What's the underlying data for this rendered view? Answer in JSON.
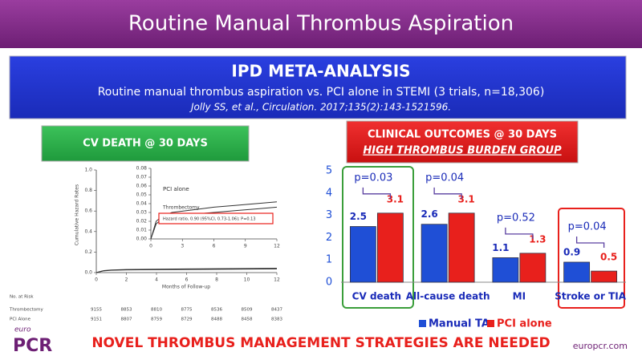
{
  "header": {
    "title": "Routine Manual Thrombus Aspiration"
  },
  "banner": {
    "title": "IPD META-ANALYSIS",
    "subtitle": "Routine manual thrombus aspiration vs. PCI alone in STEMI (3 trials, n=18,306)",
    "citation": "Jolly SS, et al., Circulation. 2017;135(2):143-1521596."
  },
  "footer": {
    "message": "NOVEL THROMBUS MANAGEMENT STRATEGIES ARE NEEDED",
    "logo_small": "euro",
    "logo": "PCR",
    "url": "europcr.com"
  },
  "chart_data": [
    {
      "type": "line",
      "title": "CV DEATH @ 30 DAYS",
      "xlabel": "Months of Follow-up",
      "ylabel": "Cumulative Hazard Rates",
      "x": [
        0,
        0.5,
        1,
        2,
        4,
        6,
        8,
        10,
        12
      ],
      "series": [
        {
          "name": "PCI alone",
          "color": "#333333",
          "values": [
            0,
            0.02,
            0.025,
            0.03,
            0.033,
            0.036,
            0.038,
            0.04,
            0.042
          ]
        },
        {
          "name": "Thrombectomy",
          "color": "#333333",
          "values": [
            0,
            0.017,
            0.022,
            0.026,
            0.028,
            0.03,
            0.032,
            0.034,
            0.036
          ]
        }
      ],
      "xlim": [
        0,
        12
      ],
      "xticks": [
        0,
        2,
        4,
        6,
        8,
        10,
        12
      ],
      "ylim": [
        0,
        1
      ],
      "yticks": [
        {
          "value": 0,
          "label": "0.0"
        },
        {
          "value": 0.2,
          "label": "0.2"
        },
        {
          "value": 0.4,
          "label": "0.4"
        },
        {
          "value": 0.6,
          "label": "0.6"
        },
        {
          "value": 0.8,
          "label": "0.8"
        },
        {
          "value": 1,
          "label": "1.0"
        }
      ],
      "inset": {
        "xlim": [
          0,
          12
        ],
        "xticks": [
          0,
          3,
          6,
          9,
          12
        ],
        "ylim": [
          0,
          0.08
        ],
        "yticks": [
          {
            "value": 0,
            "label": "0.00"
          },
          {
            "value": 0.01,
            "label": "0.01"
          },
          {
            "value": 0.02,
            "label": "0.02"
          },
          {
            "value": 0.03,
            "label": "0.03"
          },
          {
            "value": 0.04,
            "label": "0.04"
          },
          {
            "value": 0.05,
            "label": "0.05"
          },
          {
            "value": 0.06,
            "label": "0.06"
          },
          {
            "value": 0.07,
            "label": "0.07"
          },
          {
            "value": 0.08,
            "label": "0.08"
          }
        ],
        "annotation": "Hazard ratio, 0.90 (95%CI, 0.73-1.06); P=0.13"
      },
      "risk_table": {
        "title": "No. at Risk",
        "rows": [
          {
            "name": "Thrombectomy",
            "values": [
              9155,
              8853,
              8810,
              8775,
              8536,
              8509,
              8437
            ]
          },
          {
            "name": "PCI Alone",
            "values": [
              9151,
              8807,
              8759,
              8729,
              8488,
              8458,
              8383
            ]
          }
        ]
      }
    },
    {
      "type": "bar",
      "title": "CLINICAL OUTCOMES @ 30 DAYS",
      "subtitle": "HIGH THROMBUS BURDEN GROUP",
      "categories": [
        "CV death",
        "All-cause death",
        "MI",
        "Stroke or TIA"
      ],
      "series": [
        {
          "name": "Manual TA",
          "color": "#1f4fd6",
          "values": [
            2.5,
            2.6,
            1.1,
            0.9
          ]
        },
        {
          "name": "PCI alone",
          "color": "#e8201c",
          "values": [
            3.1,
            3.1,
            1.3,
            0.5
          ]
        }
      ],
      "annotations": [
        "p=0.03",
        "p=0.04",
        "p=0.52",
        "p=0.04"
      ],
      "ylim": [
        0,
        5
      ],
      "yticks": [
        0,
        1,
        2,
        3,
        4,
        5
      ]
    }
  ]
}
